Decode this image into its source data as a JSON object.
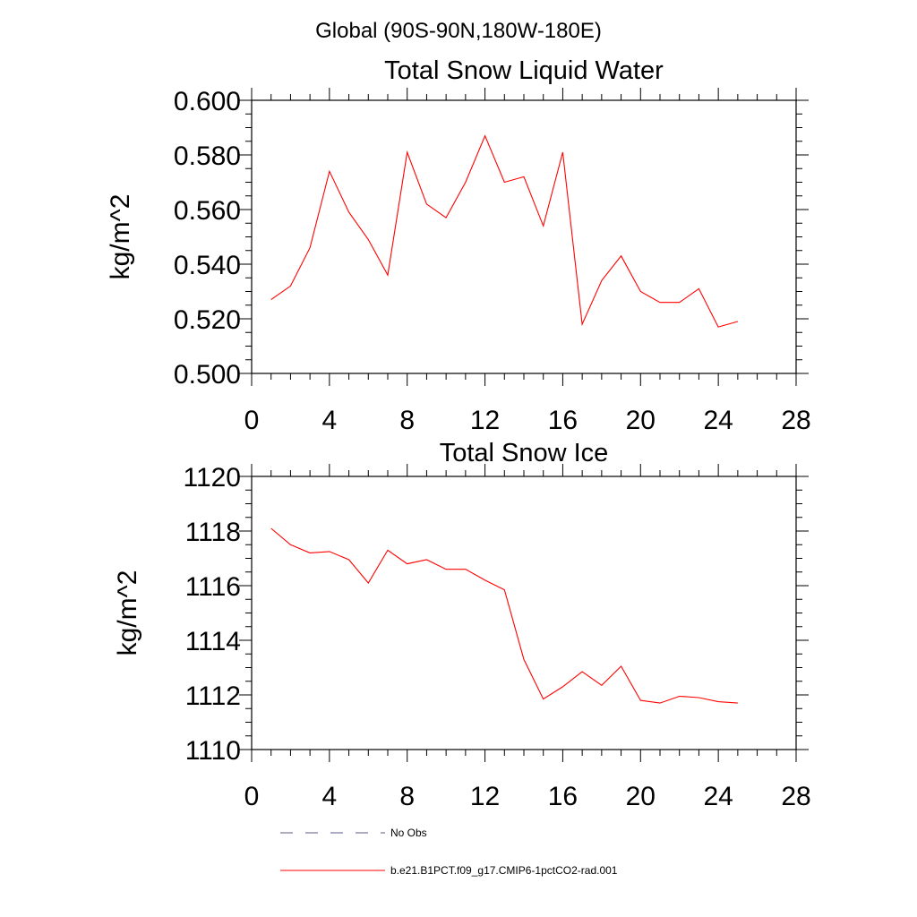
{
  "figure": {
    "region_title": "Global (90S-90N,180W-180E)"
  },
  "chart_data": [
    {
      "type": "line",
      "title": "Total Snow Liquid Water",
      "xlabel": "",
      "ylabel": "kg/m^2",
      "xlim": [
        0,
        28
      ],
      "ylim": [
        0.5,
        0.6
      ],
      "x_ticks": [
        0,
        4,
        8,
        12,
        16,
        20,
        24,
        28
      ],
      "x_tick_labels": [
        "0",
        "4",
        "8",
        "12",
        "16",
        "20",
        "24",
        "28"
      ],
      "y_ticks": [
        0.5,
        0.52,
        0.54,
        0.56,
        0.58,
        0.6
      ],
      "y_tick_labels": [
        "0.500",
        "0.520",
        "0.540",
        "0.560",
        "0.580",
        "0.600"
      ],
      "grid": false,
      "series": [
        {
          "color": "#ff0000",
          "x": [
            1,
            2,
            3,
            4,
            5,
            6,
            7,
            8,
            9,
            10,
            11,
            12,
            13,
            14,
            15,
            16,
            17,
            18,
            19,
            20,
            21,
            22,
            23,
            24,
            25
          ],
          "y": [
            0.527,
            0.532,
            0.546,
            0.574,
            0.559,
            0.549,
            0.536,
            0.581,
            0.562,
            0.557,
            0.57,
            0.587,
            0.57,
            0.572,
            0.554,
            0.581,
            0.518,
            0.534,
            0.543,
            0.53,
            0.526,
            0.526,
            0.531,
            0.517,
            0.519
          ]
        }
      ]
    },
    {
      "type": "line",
      "title": "Total Snow Ice",
      "xlabel": "",
      "ylabel": "kg/m^2",
      "xlim": [
        0,
        28
      ],
      "ylim": [
        1110,
        1120
      ],
      "x_ticks": [
        0,
        4,
        8,
        12,
        16,
        20,
        24,
        28
      ],
      "x_tick_labels": [
        "0",
        "4",
        "8",
        "12",
        "16",
        "20",
        "24",
        "28"
      ],
      "y_ticks": [
        1110,
        1112,
        1114,
        1116,
        1118,
        1120
      ],
      "y_tick_labels": [
        "1110",
        "1112",
        "1114",
        "1116",
        "1118",
        "1120"
      ],
      "grid": false,
      "series": [
        {
          "color": "#ff0000",
          "x": [
            1,
            2,
            3,
            4,
            5,
            6,
            7,
            8,
            9,
            10,
            11,
            12,
            13,
            14,
            15,
            16,
            17,
            18,
            19,
            20,
            21,
            22,
            23,
            24,
            25
          ],
          "y": [
            1118.1,
            1117.5,
            1117.2,
            1117.25,
            1116.95,
            1116.1,
            1117.3,
            1116.8,
            1116.95,
            1116.6,
            1116.6,
            1116.2,
            1115.85,
            1113.3,
            1111.85,
            1112.3,
            1112.85,
            1112.35,
            1113.05,
            1111.8,
            1111.7,
            1111.95,
            1111.9,
            1111.75,
            1111.7
          ]
        }
      ]
    }
  ],
  "legend": {
    "placement": "bottom-left",
    "items": [
      {
        "label": "No Obs",
        "style": "dashed",
        "color": "#5a5a8a"
      },
      {
        "label": "b.e21.B1PCT.f09_g17.CMIP6-1pctCO2-rad.001",
        "style": "solid",
        "color": "#ff0000"
      }
    ]
  }
}
